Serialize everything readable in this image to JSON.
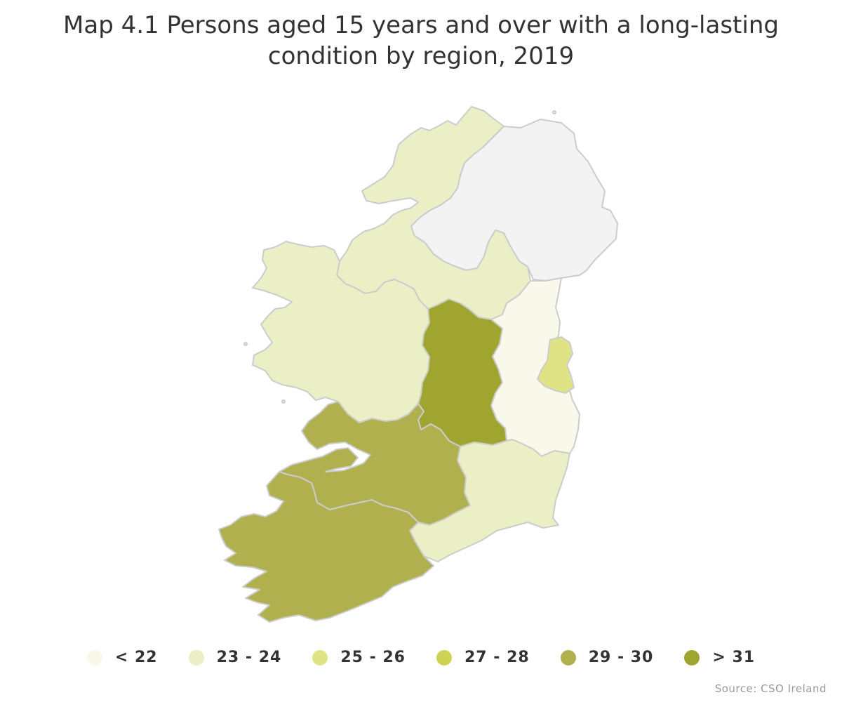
{
  "map": {
    "title_line1": "Map 4.1 Persons aged 15 years and over with a long-lasting",
    "title_line2": "condition by region, 2019",
    "source": "Source: CSO Ireland"
  },
  "legend": [
    {
      "label": "< 22",
      "color": "#f8f9ea"
    },
    {
      "label": "23 - 24",
      "color": "#ebefc6"
    },
    {
      "label": "25 - 26",
      "color": "#dfe285"
    },
    {
      "label": "27 - 28",
      "color": "#cdd254"
    },
    {
      "label": "29 - 30",
      "color": "#b0b14e"
    },
    {
      "label": "> 31",
      "color": "#a0a52f"
    }
  ],
  "regions": [
    {
      "id": "northern-ireland",
      "bin": "none",
      "color": "#f3f3f3"
    },
    {
      "id": "border",
      "bin": "23 - 24",
      "color": "#ebefc6"
    },
    {
      "id": "west",
      "bin": "23 - 24",
      "color": "#ebefc6"
    },
    {
      "id": "midland",
      "bin": "> 31",
      "color": "#a0a52f"
    },
    {
      "id": "mid-east",
      "bin": "< 22",
      "color": "#f8f9ea"
    },
    {
      "id": "dublin",
      "bin": "25 - 26",
      "color": "#dfe285"
    },
    {
      "id": "mid-west",
      "bin": "29 - 30",
      "color": "#b0b14e"
    },
    {
      "id": "south-east",
      "bin": "23 - 24",
      "color": "#ebefc6"
    },
    {
      "id": "south-west",
      "bin": "29 - 30",
      "color": "#b0b14e"
    }
  ]
}
